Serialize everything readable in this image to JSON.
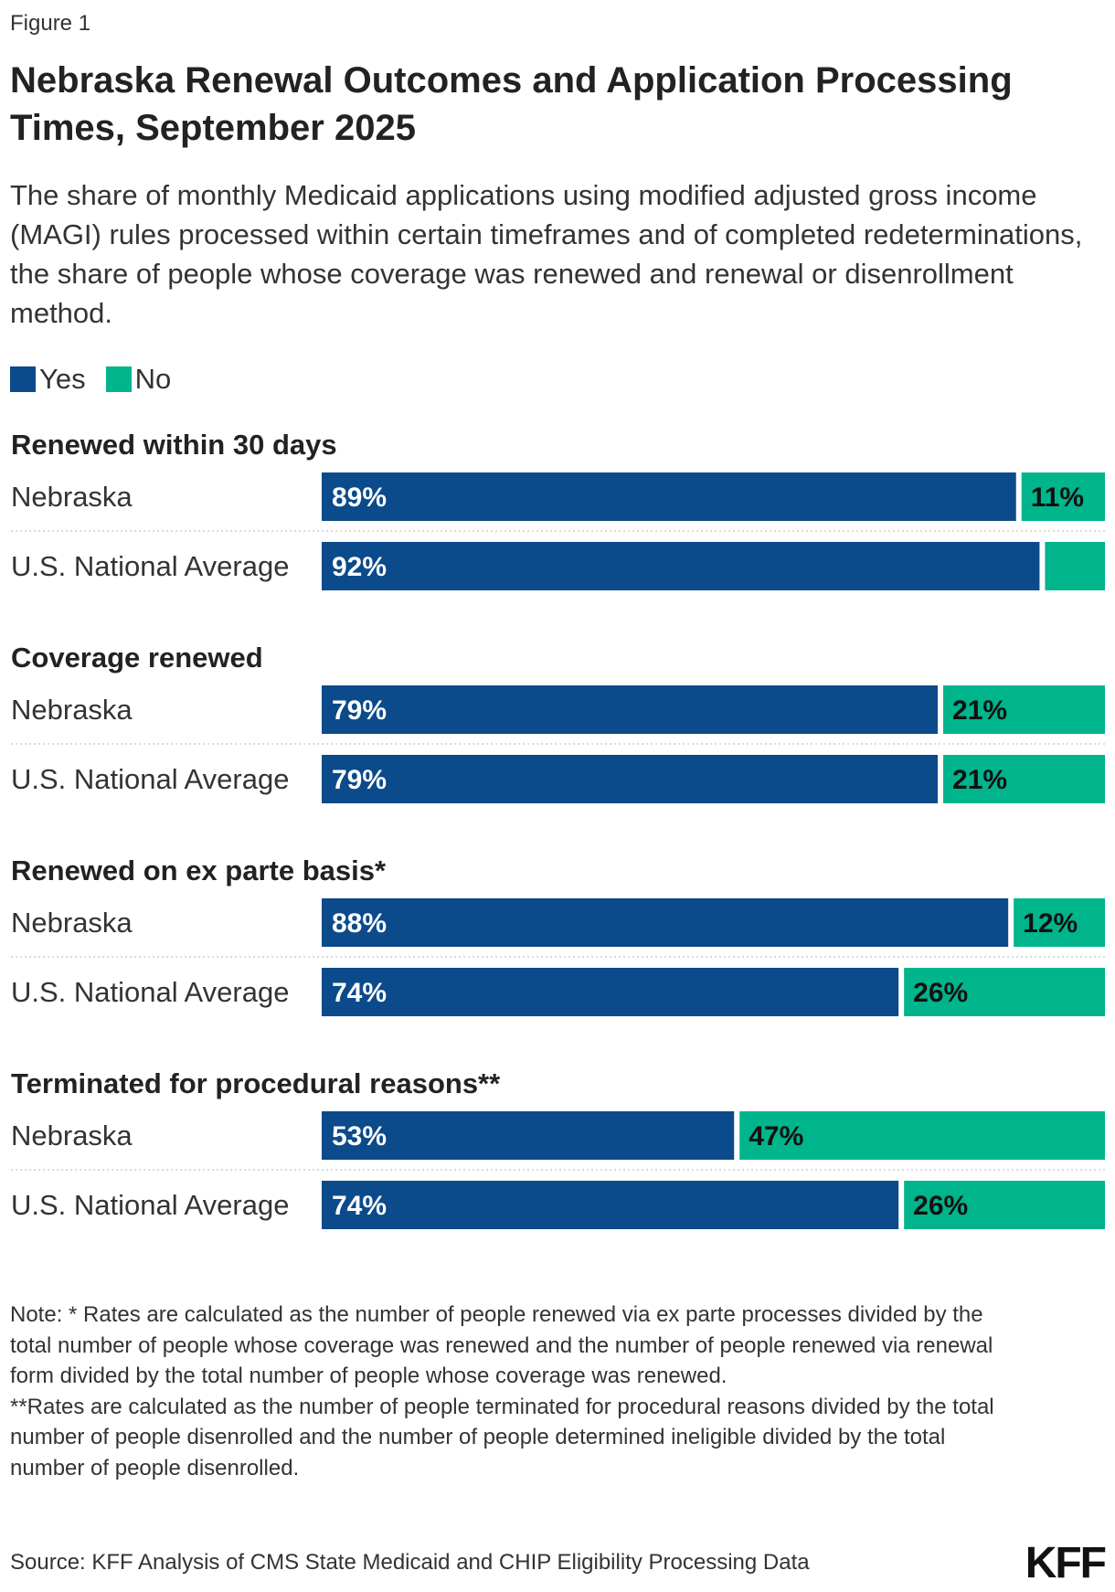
{
  "figure_label": "Figure 1",
  "title": "Nebraska Renewal Outcomes and Application Processing Times, September 2025",
  "subtitle": "The share of monthly Medicaid applications using modified adjusted gross income (MAGI) rules processed within certain timeframes and of completed redeterminations, the share of people whose coverage was renewed and renewal or disenrollment method.",
  "legend": [
    {
      "label": "Yes",
      "color": "#0b4a8b"
    },
    {
      "label": "No",
      "color": "#00b48c"
    }
  ],
  "chart_data": {
    "type": "bar",
    "orientation": "horizontal",
    "stacked": true,
    "xlim": [
      0,
      100
    ],
    "series_names": [
      "Yes",
      "No"
    ],
    "colors": {
      "Yes": "#0b4a8b",
      "No": "#00b48c"
    },
    "groups": [
      {
        "title": "Renewed within 30 days",
        "rows": [
          {
            "label": "Nebraska",
            "yes": 89,
            "no": 11,
            "yes_label": "89%",
            "no_label": "11%"
          },
          {
            "label": "U.S. National Average",
            "yes": 92,
            "no": 8,
            "yes_label": "92%",
            "no_label": ""
          }
        ]
      },
      {
        "title": "Coverage renewed",
        "rows": [
          {
            "label": "Nebraska",
            "yes": 79,
            "no": 21,
            "yes_label": "79%",
            "no_label": "21%"
          },
          {
            "label": "U.S. National Average",
            "yes": 79,
            "no": 21,
            "yes_label": "79%",
            "no_label": "21%"
          }
        ]
      },
      {
        "title": "Renewed on ex parte basis*",
        "rows": [
          {
            "label": "Nebraska",
            "yes": 88,
            "no": 12,
            "yes_label": "88%",
            "no_label": "12%"
          },
          {
            "label": "U.S. National Average",
            "yes": 74,
            "no": 26,
            "yes_label": "74%",
            "no_label": "26%"
          }
        ]
      },
      {
        "title": "Terminated for procedural reasons**",
        "rows": [
          {
            "label": "Nebraska",
            "yes": 53,
            "no": 47,
            "yes_label": "53%",
            "no_label": "47%"
          },
          {
            "label": "U.S. National Average",
            "yes": 74,
            "no": 26,
            "yes_label": "74%",
            "no_label": "26%"
          }
        ]
      }
    ]
  },
  "notes": [
    "Note: * Rates are calculated as the number of people renewed via ex parte processes divided by the total number of people whose coverage was renewed and the number of people renewed via renewal form divided by the total number of people whose coverage was renewed.",
    "**Rates are calculated as the number of people terminated for procedural reasons divided by the total number of people disenrolled and the number of people determined ineligible divided by the total number of people disenrolled."
  ],
  "source": "Source: KFF Analysis of CMS State Medicaid and CHIP Eligibility Processing Data",
  "logo_text": "KFF"
}
